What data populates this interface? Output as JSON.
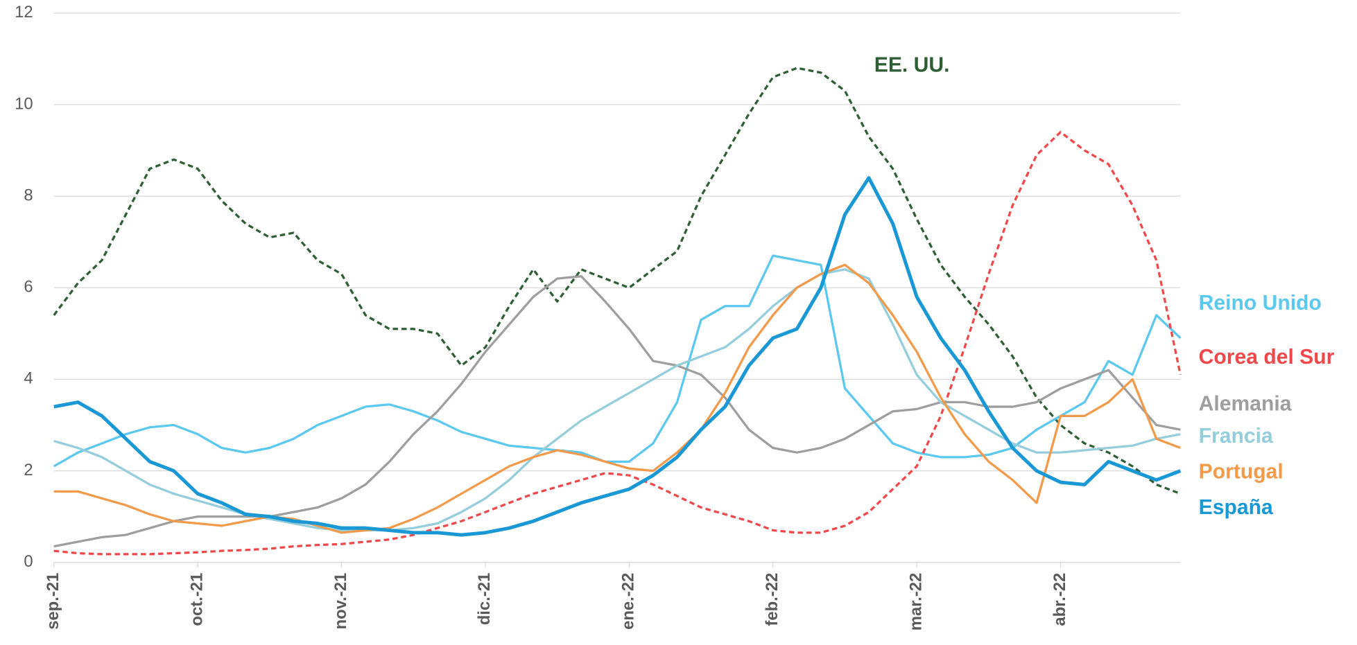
{
  "chart_data": {
    "type": "line",
    "categories": [
      "sep.-21",
      null,
      null,
      null,
      null,
      null,
      "oct.-21",
      null,
      null,
      null,
      null,
      null,
      "nov.-21",
      null,
      null,
      null,
      null,
      null,
      "dic.-21",
      null,
      null,
      null,
      null,
      null,
      "ene.-22",
      null,
      null,
      null,
      null,
      null,
      "feb.-22",
      null,
      null,
      null,
      null,
      null,
      "mar.-22",
      null,
      null,
      null,
      null,
      null,
      "abr.-22",
      null,
      null,
      null,
      null,
      null
    ],
    "ylim": [
      0,
      12
    ],
    "yticks": [
      0,
      2,
      4,
      6,
      8,
      10,
      12
    ],
    "grid": true,
    "series": [
      {
        "name": "EE. UU.",
        "color": "#2e5e34",
        "dashed": true,
        "values": [
          5.4,
          6.1,
          6.6,
          7.6,
          8.6,
          8.8,
          8.6,
          7.9,
          7.4,
          7.1,
          7.2,
          6.6,
          6.3,
          5.4,
          5.1,
          5.1,
          5.0,
          4.3,
          4.7,
          5.6,
          6.4,
          5.7,
          6.4,
          6.2,
          6.0,
          6.4,
          6.8,
          8.0,
          8.9,
          9.8,
          10.6,
          10.8,
          10.7,
          10.3,
          9.3,
          8.6,
          7.5,
          6.5,
          5.8,
          5.2,
          4.5,
          3.6,
          3.0,
          2.6,
          2.4,
          2.1,
          1.7,
          1.5
        ]
      },
      {
        "name": "Reino Unido",
        "color": "#5bc8f0",
        "dashed": false,
        "values": [
          2.1,
          2.4,
          2.6,
          2.8,
          2.95,
          3.0,
          2.8,
          2.5,
          2.4,
          2.5,
          2.7,
          3.0,
          3.2,
          3.4,
          3.45,
          3.3,
          3.1,
          2.85,
          2.7,
          2.55,
          2.5,
          2.45,
          2.4,
          2.2,
          2.2,
          2.6,
          3.5,
          5.3,
          5.6,
          5.6,
          6.7,
          6.6,
          6.5,
          3.8,
          3.2,
          2.6,
          2.4,
          2.3,
          2.3,
          2.35,
          2.5,
          2.9,
          3.2,
          3.5,
          4.4,
          4.1,
          5.4,
          4.9
        ]
      },
      {
        "name": "Corea del Sur",
        "color": "#f0474a",
        "dashed": true,
        "values": [
          0.25,
          0.2,
          0.18,
          0.18,
          0.18,
          0.2,
          0.22,
          0.25,
          0.27,
          0.3,
          0.35,
          0.38,
          0.4,
          0.45,
          0.5,
          0.6,
          0.75,
          0.9,
          1.1,
          1.3,
          1.5,
          1.65,
          1.8,
          1.95,
          1.9,
          1.7,
          1.45,
          1.2,
          1.05,
          0.9,
          0.7,
          0.65,
          0.65,
          0.8,
          1.1,
          1.6,
          2.1,
          3.2,
          4.7,
          6.3,
          7.8,
          8.9,
          9.4,
          9.0,
          8.7,
          7.8,
          6.6,
          4.1
        ]
      },
      {
        "name": "Alemania",
        "color": "#9e9e9e",
        "dashed": false,
        "values": [
          0.35,
          0.45,
          0.55,
          0.6,
          0.75,
          0.9,
          1.0,
          1.0,
          1.0,
          1.0,
          1.1,
          1.2,
          1.4,
          1.7,
          2.2,
          2.8,
          3.3,
          3.9,
          4.6,
          5.2,
          5.8,
          6.2,
          6.25,
          5.7,
          5.1,
          4.4,
          4.3,
          4.1,
          3.6,
          2.9,
          2.5,
          2.4,
          2.5,
          2.7,
          3.0,
          3.3,
          3.35,
          3.5,
          3.5,
          3.4,
          3.4,
          3.5,
          3.8,
          4.0,
          4.2,
          3.6,
          3.0,
          2.9
        ]
      },
      {
        "name": "Francia",
        "color": "#94cddc",
        "dashed": false,
        "values": [
          2.65,
          2.5,
          2.3,
          2.0,
          1.7,
          1.5,
          1.35,
          1.2,
          1.05,
          0.95,
          0.85,
          0.75,
          0.7,
          0.7,
          0.7,
          0.75,
          0.85,
          1.1,
          1.4,
          1.8,
          2.3,
          2.7,
          3.1,
          3.4,
          3.7,
          4.0,
          4.3,
          4.5,
          4.7,
          5.1,
          5.6,
          6.0,
          6.3,
          6.4,
          6.2,
          5.2,
          4.1,
          3.5,
          3.2,
          2.9,
          2.6,
          2.4,
          2.4,
          2.45,
          2.5,
          2.55,
          2.7,
          2.8
        ]
      },
      {
        "name": "Portugal",
        "color": "#f39a4a",
        "dashed": false,
        "values": [
          1.55,
          1.55,
          1.4,
          1.25,
          1.05,
          0.9,
          0.85,
          0.8,
          0.9,
          1.0,
          0.95,
          0.8,
          0.65,
          0.7,
          0.75,
          0.95,
          1.2,
          1.5,
          1.8,
          2.1,
          2.3,
          2.45,
          2.35,
          2.2,
          2.05,
          2.0,
          2.4,
          2.9,
          3.7,
          4.7,
          5.4,
          6.0,
          6.3,
          6.5,
          6.1,
          5.4,
          4.6,
          3.6,
          2.8,
          2.2,
          1.8,
          1.3,
          3.2,
          3.2,
          3.5,
          4.0,
          2.7,
          2.5
        ]
      },
      {
        "name": "España",
        "color": "#1a98d5",
        "dashed": false,
        "values": [
          3.4,
          3.5,
          3.2,
          2.7,
          2.2,
          2.0,
          1.5,
          1.3,
          1.05,
          1.0,
          0.9,
          0.85,
          0.75,
          0.75,
          0.7,
          0.65,
          0.65,
          0.6,
          0.65,
          0.75,
          0.9,
          1.1,
          1.3,
          1.45,
          1.6,
          1.9,
          2.3,
          2.9,
          3.4,
          4.3,
          4.9,
          5.1,
          6.0,
          7.6,
          8.4,
          7.4,
          5.8,
          4.9,
          4.2,
          3.3,
          2.5,
          2.0,
          1.75,
          1.7,
          2.2,
          2.0,
          1.8,
          2.0
        ]
      }
    ]
  }
}
